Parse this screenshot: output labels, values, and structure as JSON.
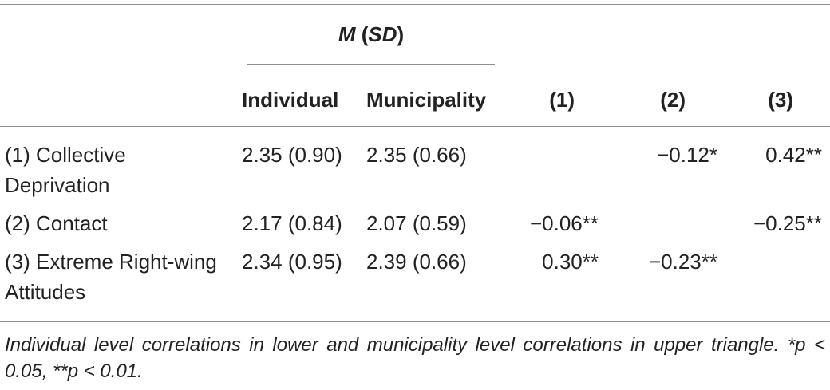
{
  "header": {
    "group_m": "M",
    "group_sd": "SD",
    "columns": [
      "Individual",
      "Municipality",
      "(1)",
      "(2)",
      "(3)"
    ]
  },
  "rows": [
    {
      "label": "(1) Collective Deprivation",
      "individual": "2.35 (0.90)",
      "municipality": "2.35 (0.66)",
      "c1": "",
      "c2": "−0.12*",
      "c3": "0.42**"
    },
    {
      "label": "(2) Contact",
      "individual": "2.17 (0.84)",
      "municipality": "2.07 (0.59)",
      "c1": "−0.06**",
      "c2": "",
      "c3": "−0.25**"
    },
    {
      "label": "(3) Extreme Right-wing Attitudes",
      "individual": "2.34 (0.95)",
      "municipality": "2.39 (0.66)",
      "c1": "0.30**",
      "c2": "−0.23**",
      "c3": ""
    }
  ],
  "note": "Individual level correlations in lower and municipality level correlations in upper triangle. *p < 0.05, **p < 0.01."
}
